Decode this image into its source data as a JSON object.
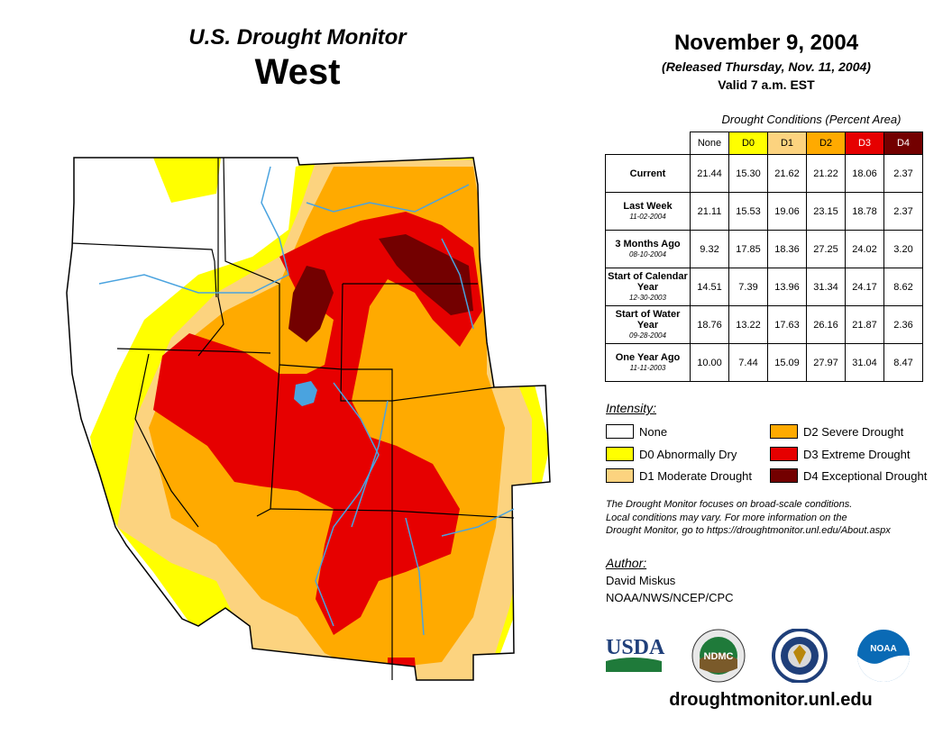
{
  "header": {
    "product": "U.S. Drought Monitor",
    "region": "West",
    "date": "November 9, 2004",
    "released": "(Released Thursday, Nov. 11, 2004)",
    "valid": "Valid 7 a.m. EST"
  },
  "table": {
    "caption": "Drought Conditions (Percent Area)",
    "columns": [
      "None",
      "D0",
      "D1",
      "D2",
      "D3",
      "D4"
    ],
    "column_colors": [
      "#ffffff",
      "#ffff00",
      "#fcd37f",
      "#ffaa00",
      "#e60000",
      "#730000"
    ],
    "column_text_colors": [
      "#000000",
      "#000000",
      "#000000",
      "#000000",
      "#ffffff",
      "#ffffff"
    ],
    "rows": [
      {
        "label": "Current",
        "sublabel": "",
        "values": [
          "21.44",
          "15.30",
          "21.62",
          "21.22",
          "18.06",
          "2.37"
        ]
      },
      {
        "label": "Last Week",
        "sublabel": "11-02-2004",
        "values": [
          "21.11",
          "15.53",
          "19.06",
          "23.15",
          "18.78",
          "2.37"
        ]
      },
      {
        "label": "3 Months Ago",
        "sublabel": "08-10-2004",
        "values": [
          "9.32",
          "17.85",
          "18.36",
          "27.25",
          "24.02",
          "3.20"
        ]
      },
      {
        "label": "Start of Calendar Year",
        "sublabel": "12-30-2003",
        "values": [
          "14.51",
          "7.39",
          "13.96",
          "31.34",
          "24.17",
          "8.62"
        ]
      },
      {
        "label": "Start of Water Year",
        "sublabel": "09-28-2004",
        "values": [
          "18.76",
          "13.22",
          "17.63",
          "26.16",
          "21.87",
          "2.36"
        ]
      },
      {
        "label": "One Year Ago",
        "sublabel": "11-11-2003",
        "values": [
          "10.00",
          "7.44",
          "15.09",
          "27.97",
          "31.04",
          "8.47"
        ]
      }
    ]
  },
  "legend": {
    "title": "Intensity:",
    "items": [
      {
        "label": "None",
        "color": "#ffffff"
      },
      {
        "label": "D0 Abnormally Dry",
        "color": "#ffff00"
      },
      {
        "label": "D1 Moderate Drought",
        "color": "#fcd37f"
      },
      {
        "label": "D2 Severe Drought",
        "color": "#ffaa00"
      },
      {
        "label": "D3 Extreme Drought",
        "color": "#e60000"
      },
      {
        "label": "D4 Exceptional Drought",
        "color": "#730000"
      }
    ]
  },
  "note": {
    "line1": "The Drought Monitor focuses on broad-scale conditions.",
    "line2": "Local conditions may vary. For more information on the",
    "line3": "Drought Monitor, go to https://droughtmonitor.unl.edu/About.aspx"
  },
  "author": {
    "title": "Author:",
    "name": "David Miskus",
    "org": "NOAA/NWS/NCEP/CPC"
  },
  "logos": {
    "usda": "USDA",
    "ndmc": "NDMC",
    "noaa": "NOAA"
  },
  "site": "droughtmonitor.unl.edu"
}
